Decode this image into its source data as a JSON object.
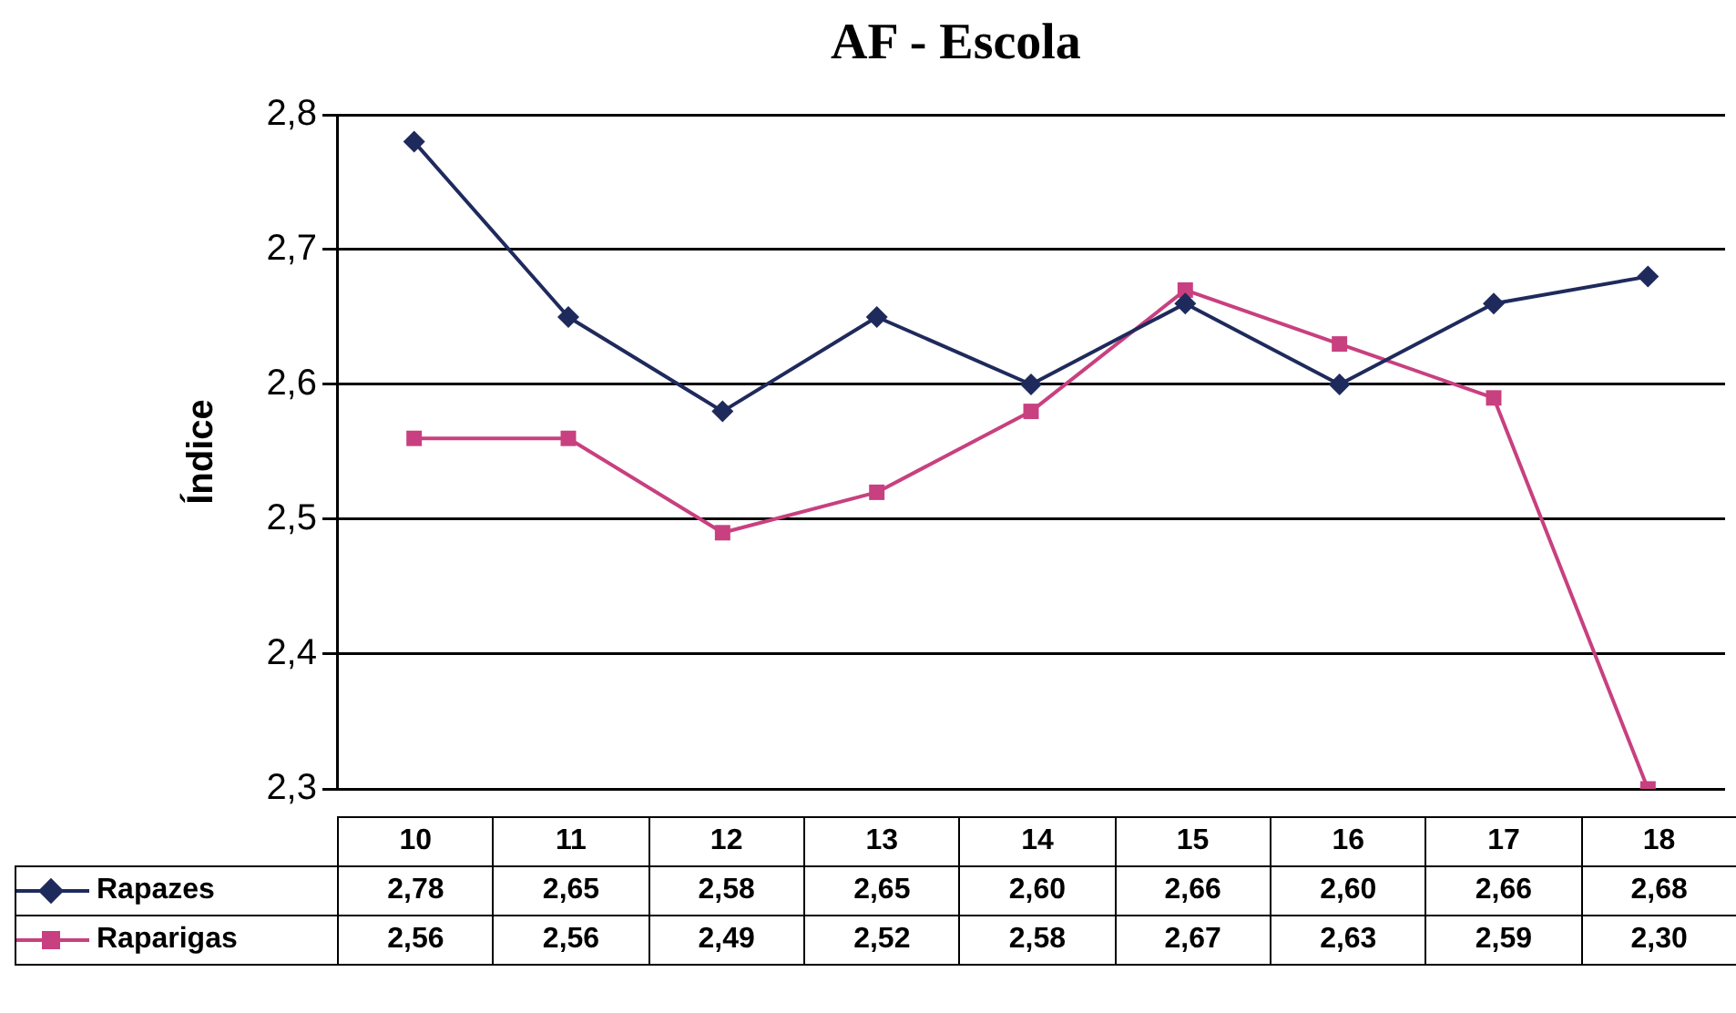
{
  "chart_data": {
    "type": "line",
    "title": "AF - Escola",
    "ylabel": "Índice",
    "categories": [
      "10",
      "11",
      "12",
      "13",
      "14",
      "15",
      "16",
      "17",
      "18"
    ],
    "series": [
      {
        "name": "Rapazes",
        "color": "#1f2a5c",
        "marker": "diamond",
        "values": [
          2.78,
          2.65,
          2.58,
          2.65,
          2.6,
          2.66,
          2.6,
          2.66,
          2.68
        ],
        "value_labels": [
          "2,78",
          "2,65",
          "2,58",
          "2,65",
          "2,60",
          "2,66",
          "2,60",
          "2,66",
          "2,68"
        ]
      },
      {
        "name": "Raparigas",
        "color": "#c8407f",
        "marker": "square",
        "values": [
          2.56,
          2.56,
          2.49,
          2.52,
          2.58,
          2.67,
          2.63,
          2.59,
          2.3
        ],
        "value_labels": [
          "2,56",
          "2,56",
          "2,49",
          "2,52",
          "2,58",
          "2,67",
          "2,63",
          "2,59",
          "2,30"
        ]
      }
    ],
    "ylim": [
      2.3,
      2.8
    ],
    "yticks": [
      {
        "value": 2.3,
        "label": "2,3"
      },
      {
        "value": 2.4,
        "label": "2,4"
      },
      {
        "value": 2.5,
        "label": "2,5"
      },
      {
        "value": 2.6,
        "label": "2,6"
      },
      {
        "value": 2.7,
        "label": "2,7"
      },
      {
        "value": 2.8,
        "label": "2,8"
      }
    ],
    "grid": "y",
    "legend": "bottom left",
    "line_style": "solid"
  }
}
